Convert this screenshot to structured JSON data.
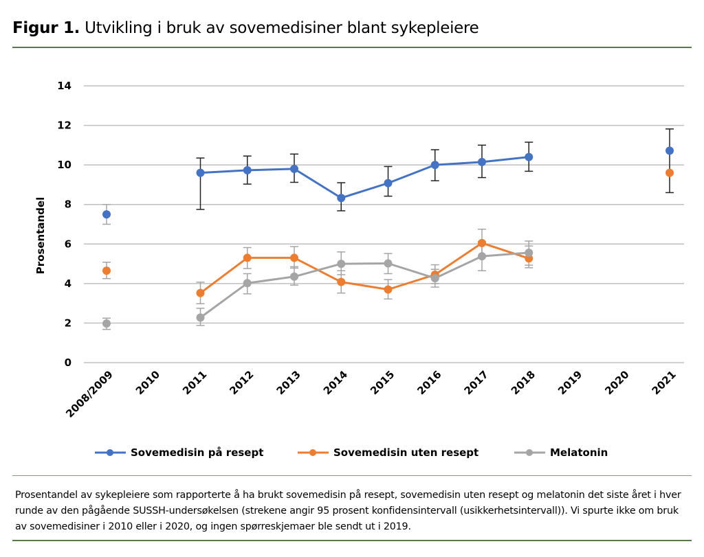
{
  "figure": {
    "label": "Figur 1.",
    "title": "Utvikling i bruk av sovemedisiner blant sykepleiere",
    "caption": "Prosentandel av sykepleiere som rapporterte å ha brukt sovemedisin på resept, sovemedisin uten resept og melatonin det siste året i hver runde av den pågående SUSSH-undersøkelsen (strekene angir 95 prosent konfidensintervall (usikkerhetsintervall)). Vi spurte ikke om bruk av sovemedisiner i 2010 eller i 2020, og ingen spørreskjemaer ble sendt ut i 2019."
  },
  "chart_data": {
    "type": "line",
    "title": "",
    "xlabel": "",
    "ylabel": "Prosentandel",
    "ylim": [
      0,
      14
    ],
    "yticks": [
      0,
      2,
      4,
      6,
      8,
      10,
      12,
      14
    ],
    "grid": true,
    "legend_position": "bottom",
    "categories": [
      "2008/2009",
      "2010",
      "2011",
      "2012",
      "2013",
      "2014",
      "2015",
      "2016",
      "2017",
      "2018",
      "2019",
      "2020",
      "2021"
    ],
    "series": [
      {
        "name": "Sovemedisin på resept",
        "color": "#4472C4",
        "values": [
          7.5,
          null,
          9.6,
          9.73,
          9.8,
          8.33,
          9.08,
          10.0,
          10.15,
          10.4,
          null,
          null,
          10.72
        ],
        "ci_low": [
          7.0,
          null,
          7.75,
          9.03,
          9.12,
          7.68,
          8.42,
          9.2,
          9.36,
          9.68,
          null,
          null,
          8.6
        ],
        "ci_high": [
          8.0,
          null,
          10.35,
          10.45,
          10.55,
          9.1,
          9.92,
          10.77,
          11.0,
          11.15,
          null,
          null,
          11.82
        ],
        "connected_from": "2011",
        "connected_to": "2018"
      },
      {
        "name": "Sovemedisin uten resept",
        "color": "#ED7D31",
        "values": [
          4.65,
          null,
          3.52,
          5.3,
          5.3,
          4.08,
          3.7,
          4.45,
          6.05,
          5.27,
          null,
          null,
          9.6
        ],
        "ci_low": [
          4.25,
          null,
          2.98,
          4.76,
          4.78,
          3.52,
          3.22,
          4.0,
          5.35,
          4.8,
          null,
          null,
          null
        ],
        "ci_high": [
          5.08,
          null,
          4.07,
          5.82,
          5.87,
          4.65,
          4.2,
          4.95,
          6.75,
          5.9,
          null,
          null,
          null
        ],
        "connected_from": "2011",
        "connected_to": "2018"
      },
      {
        "name": "Melatonin",
        "color": "#A5A5A5",
        "values": [
          1.98,
          null,
          2.28,
          4.02,
          4.35,
          5.0,
          5.02,
          4.27,
          5.38,
          5.56,
          null,
          null,
          null
        ],
        "ci_low": [
          1.68,
          null,
          1.88,
          3.48,
          3.92,
          4.45,
          4.5,
          3.82,
          4.65,
          4.93,
          null,
          null,
          null
        ],
        "ci_high": [
          2.25,
          null,
          2.75,
          4.5,
          4.85,
          5.6,
          5.52,
          4.72,
          6.12,
          6.15,
          null,
          null,
          null
        ],
        "connected_from": "2011",
        "connected_to": "2018"
      }
    ]
  }
}
